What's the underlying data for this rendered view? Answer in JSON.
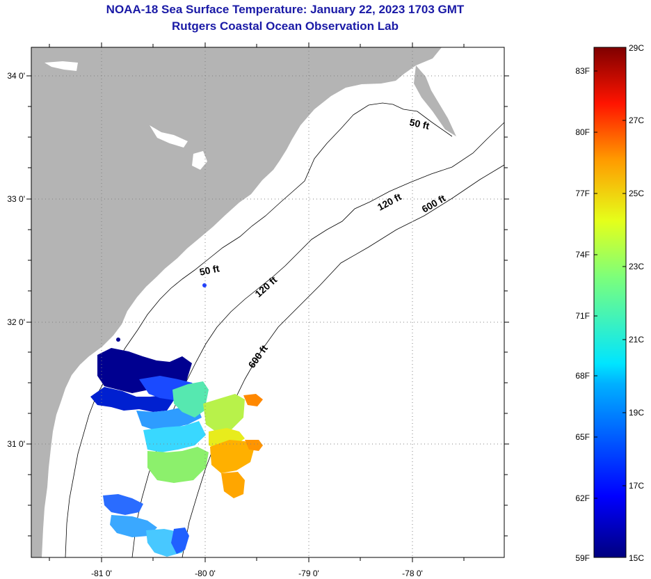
{
  "header": {
    "title": "NOAA-18 Sea Surface Temperature:  January 22, 2023 1703 GMT",
    "subtitle": "Rutgers Coastal Ocean Observation Lab"
  },
  "map": {
    "lat_range": [
      30.2,
      34.2
    ],
    "lon_range": [
      -81.67,
      -77.13
    ],
    "lat_labels": [
      "34 0'",
      "33 0'",
      "32 0'",
      "31 0'"
    ],
    "lon_labels": [
      "-81 0'",
      "-80 0'",
      "-79 0'",
      "-78 0'"
    ],
    "contours": [
      {
        "label": "50 ft"
      },
      {
        "label": "50 ft"
      },
      {
        "label": "120 ft"
      },
      {
        "label": "120 ft"
      },
      {
        "label": "600 ft"
      },
      {
        "label": "600 ft"
      }
    ],
    "colors": {
      "land": "#b4b4b4",
      "water": "#ffffff",
      "grid": "#808080"
    }
  },
  "colorbar": {
    "fahrenheit": [
      "83F",
      "80F",
      "77F",
      "74F",
      "71F",
      "68F",
      "65F",
      "62F",
      "59F"
    ],
    "celsius": [
      "29C",
      "27C",
      "25C",
      "23C",
      "21C",
      "19C",
      "17C",
      "15C"
    ],
    "range_c": [
      15,
      29
    ]
  }
}
